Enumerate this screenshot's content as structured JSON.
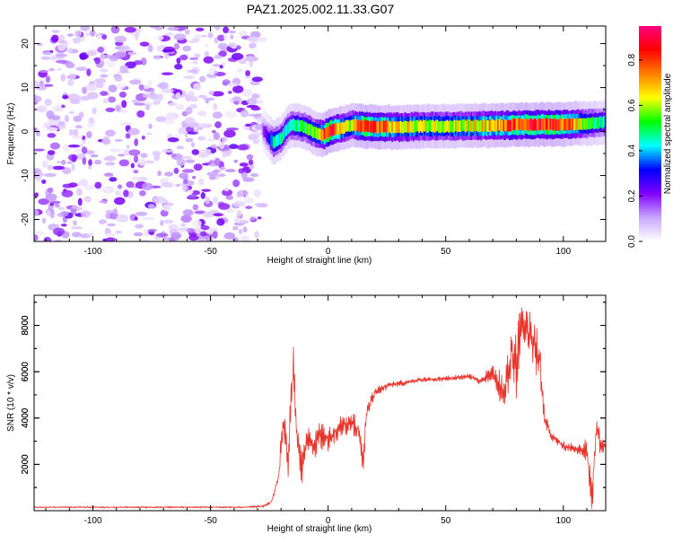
{
  "title": "PAZ1.2025.002.11.33.G07",
  "chart_data": [
    {
      "type": "heatmap",
      "xlabel": "Height of straight line (km)",
      "ylabel": "Frequency (Hz)",
      "xlim": [
        -125,
        118
      ],
      "ylim": [
        -25,
        24
      ],
      "xticks": [
        -100,
        -50,
        0,
        50,
        100
      ],
      "yticks": [
        -20,
        -10,
        0,
        10,
        20
      ],
      "grid": false,
      "colorbar": {
        "label": "Normalized spectral amplitude",
        "ticks": [
          0.0,
          0.2,
          0.4,
          0.6,
          0.8
        ],
        "tick_labels": [
          "0.0",
          "0.2",
          "0.4",
          "0.6",
          "0.8"
        ],
        "range": [
          0,
          0.95
        ],
        "colors": [
          "#ffffff",
          "#c9a6ff",
          "#8000ff",
          "#0000ff",
          "#00ffff",
          "#00ff00",
          "#ffff00",
          "#ff8000",
          "#ff0000",
          "#ff0080"
        ]
      },
      "noise_region_x": [
        -125,
        -28
      ],
      "ridge": {
        "x": [
          -28,
          -25,
          -23,
          -20,
          -17,
          -15,
          -10,
          -5,
          -2,
          0,
          3,
          6,
          10,
          15,
          20,
          30,
          40,
          50,
          60,
          70,
          80,
          90,
          100,
          105,
          110,
          115,
          118
        ],
        "y": [
          0.5,
          -1.5,
          -2.5,
          -1.5,
          1.0,
          1.5,
          1.0,
          -0.5,
          -0.8,
          0,
          0.5,
          0.8,
          1.5,
          1.2,
          1.0,
          1.0,
          1.2,
          1.2,
          1.3,
          1.4,
          1.5,
          1.6,
          1.6,
          1.8,
          1.8,
          2.0,
          2.2
        ],
        "amplitude": [
          0.15,
          0.3,
          0.5,
          0.45,
          0.4,
          0.45,
          0.5,
          0.55,
          0.7,
          0.9,
          0.75,
          0.65,
          0.6,
          0.85,
          0.8,
          0.65,
          0.62,
          0.6,
          0.62,
          0.7,
          0.8,
          0.85,
          0.8,
          0.7,
          0.5,
          0.45,
          0.4
        ]
      }
    },
    {
      "type": "line",
      "xlabel": "Height of straight line (km)",
      "ylabel": "SNR (10 * v/v)",
      "xlim": [
        -125,
        118
      ],
      "ylim": [
        0,
        9300
      ],
      "xticks": [
        -100,
        -50,
        0,
        50,
        100
      ],
      "yticks": [
        2000,
        4000,
        6000,
        8000
      ],
      "grid": false,
      "series": [
        {
          "color": "#e8332b",
          "x": [
            -125,
            -100,
            -75,
            -50,
            -35,
            -27,
            -24,
            -21,
            -19,
            -17,
            -15,
            -13,
            -11,
            -9,
            -7,
            -5,
            -3,
            0,
            3,
            6,
            10,
            13,
            15,
            16,
            18,
            20,
            25,
            30,
            40,
            50,
            60,
            65,
            70,
            75,
            78,
            80,
            82,
            84,
            86,
            88,
            90,
            92,
            95,
            100,
            105,
            108,
            110,
            112,
            114,
            116,
            118
          ],
          "y": [
            150,
            150,
            150,
            150,
            150,
            200,
            400,
            1500,
            4000,
            2200,
            6000,
            3000,
            1800,
            3300,
            2800,
            3000,
            3300,
            3100,
            3400,
            3700,
            3800,
            3500,
            1900,
            4000,
            4700,
            5100,
            5400,
            5500,
            5650,
            5700,
            5800,
            5600,
            6000,
            5000,
            7000,
            6200,
            8200,
            7800,
            7500,
            7000,
            6500,
            4000,
            3200,
            2800,
            2700,
            2600,
            2800,
            400,
            3500,
            2800,
            2800
          ],
          "jitter": [
            20,
            30,
            30,
            30,
            30,
            60,
            100,
            300,
            1200,
            800,
            1500,
            1200,
            700,
            800,
            900,
            700,
            700,
            600,
            500,
            500,
            500,
            500,
            500,
            500,
            300,
            200,
            200,
            150,
            120,
            120,
            150,
            200,
            400,
            900,
            1100,
            1400,
            1500,
            1400,
            1300,
            1200,
            900,
            400,
            200,
            200,
            200,
            250,
            800,
            900,
            900,
            400,
            200
          ]
        }
      ]
    }
  ]
}
